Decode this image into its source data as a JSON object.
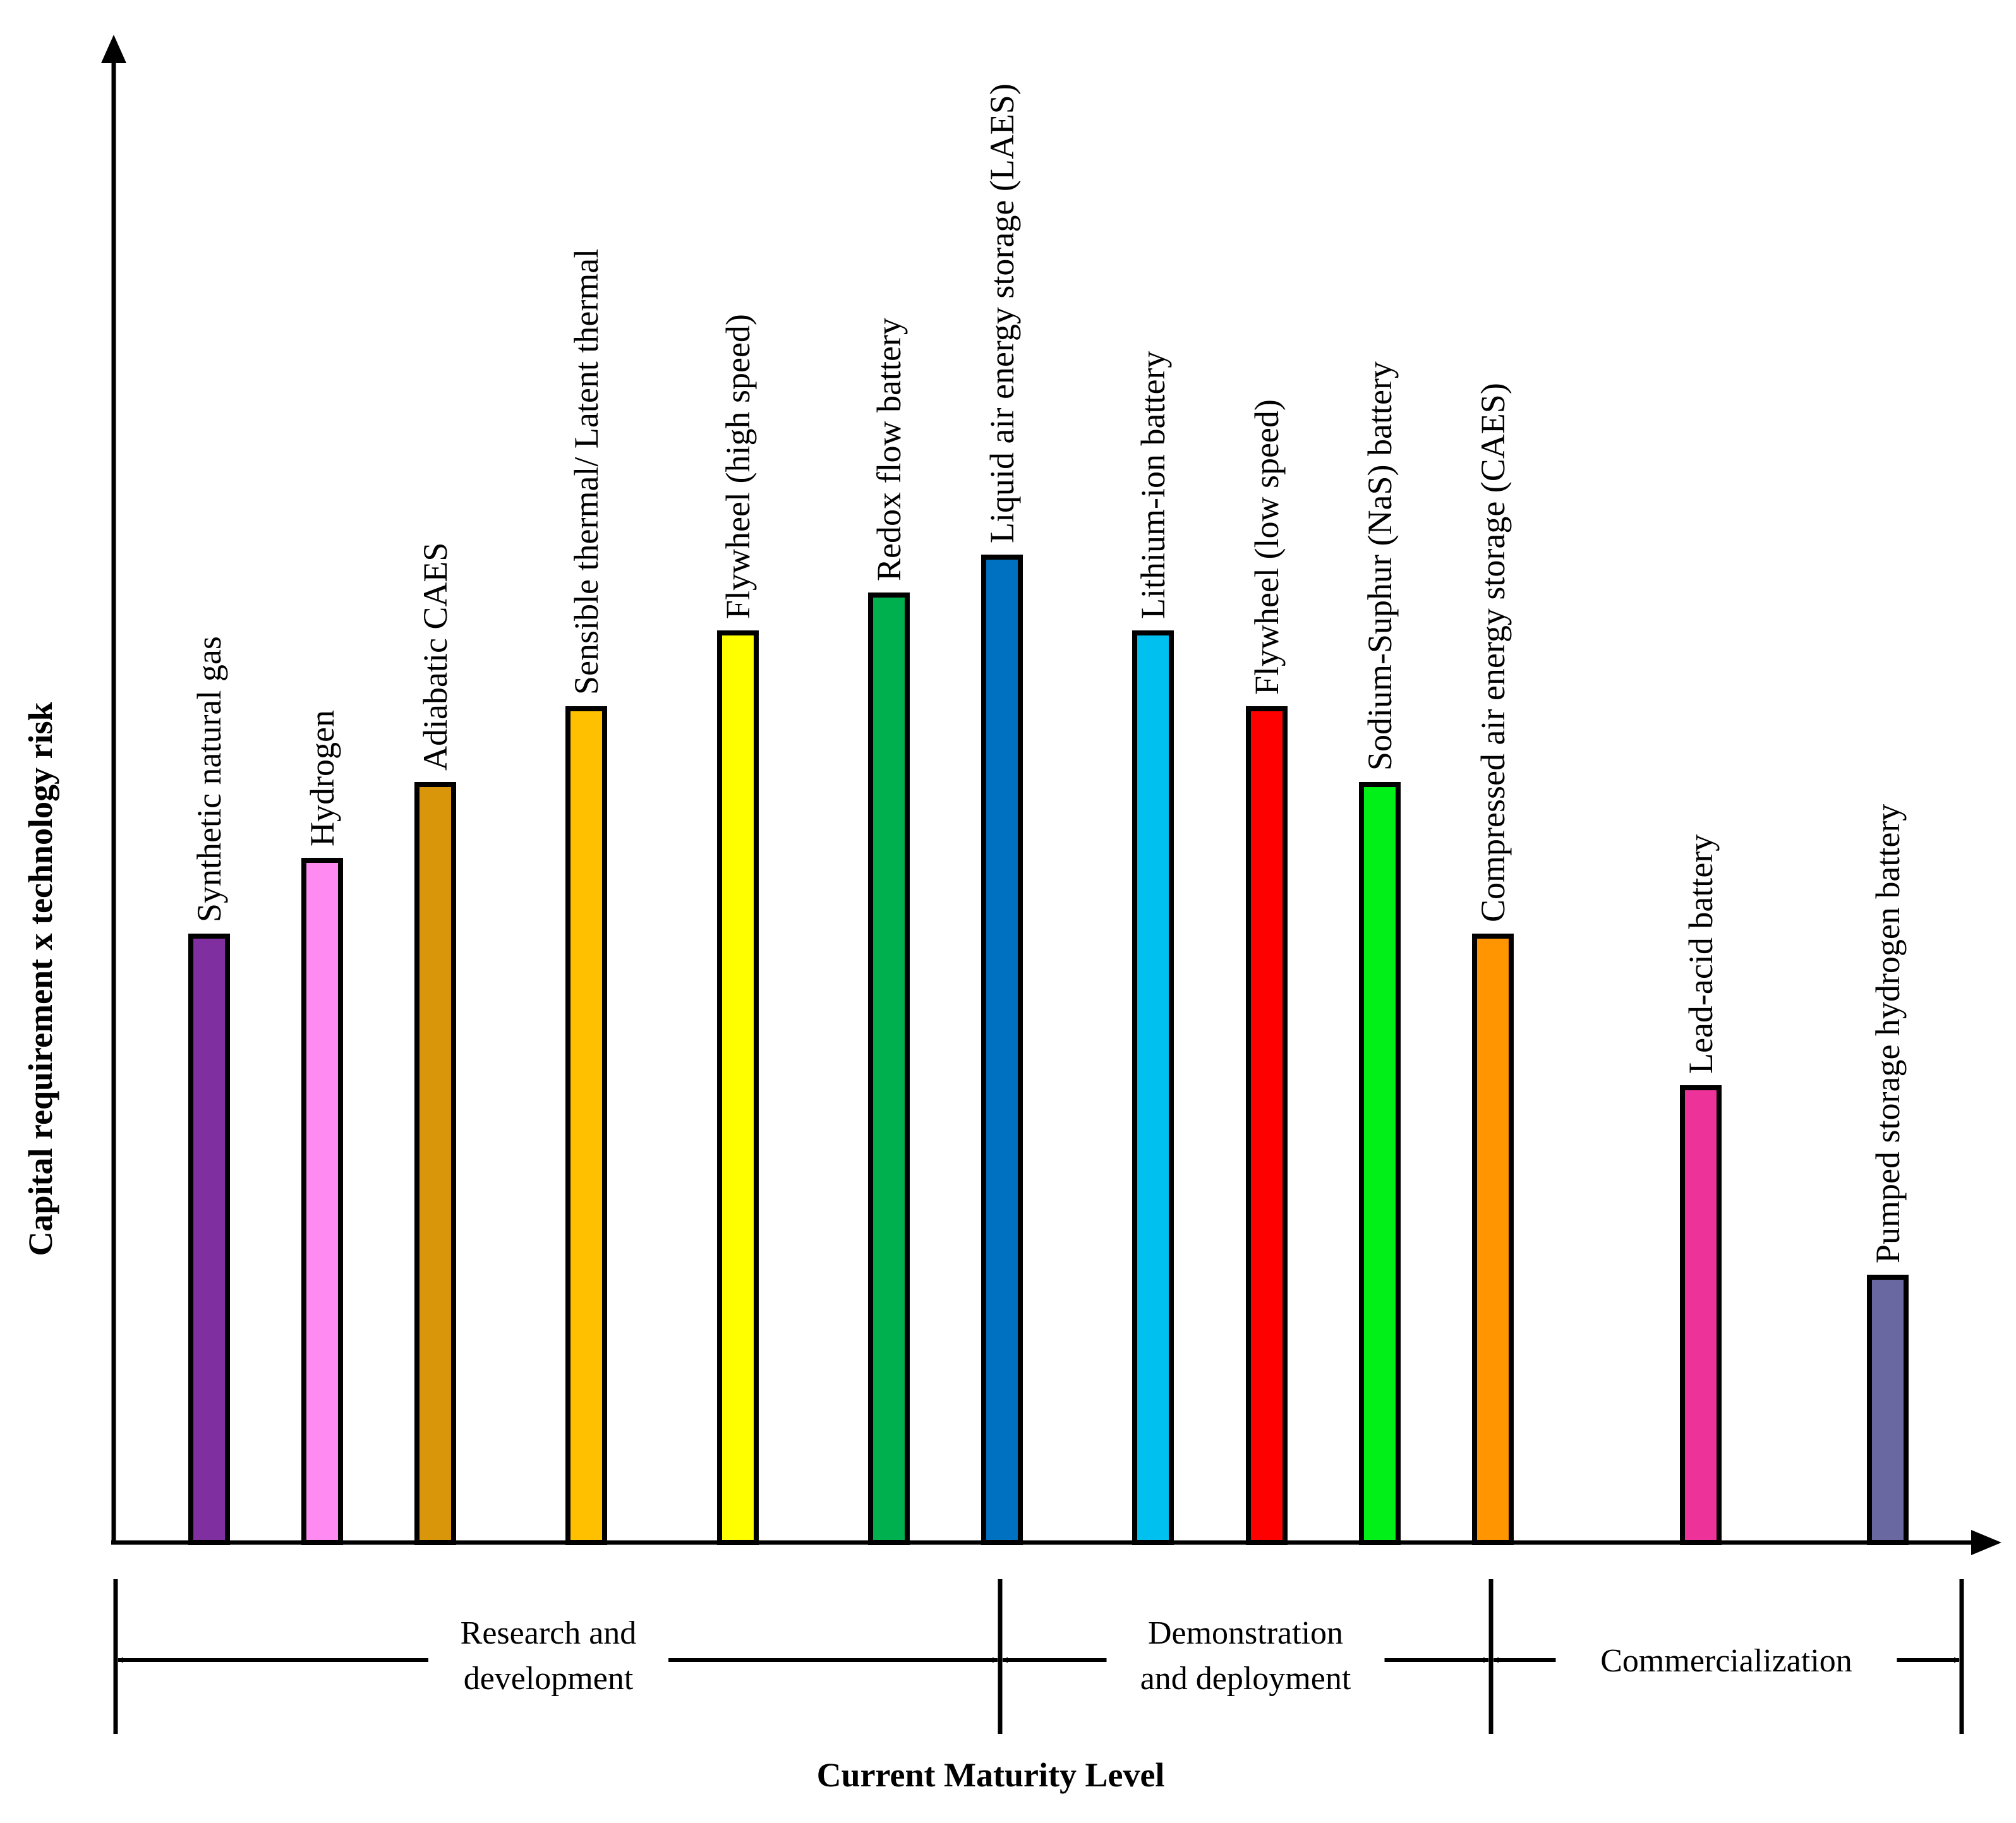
{
  "chart_data": {
    "type": "bar",
    "ylabel": "Capital requirement x technology risk",
    "xlabel": "Current Maturity Level",
    "ylim": [
      0,
      100
    ],
    "grid": false,
    "categories": [
      "Synthetic natural gas",
      "Hydrogen",
      "Adiabatic CAES",
      "Sensible thermal/ Latent thermal",
      "Flywheel (high speed)",
      "Redox flow battery",
      "Liquid air energy storage (LAES)",
      "Lithium-ion battery",
      "Flywheel (low speed)",
      "Sodium-Suphur (NaS) battery",
      "Compressed air energy storage (CAES)",
      "Lead-acid battery",
      "Pumped storage hydrogen battery"
    ],
    "values": [
      40,
      45,
      50,
      55,
      60,
      62.5,
      65,
      60,
      55,
      50,
      40,
      30,
      17.5
    ],
    "colors": [
      "#7F2FA0",
      "#FF8AF2",
      "#D9960B",
      "#FFC000",
      "#FFFF00",
      "#00B04F",
      "#0070C0",
      "#00C0F0",
      "#FF0000",
      "#00F018",
      "#FF9500",
      "#ED3399",
      "#6A68A0"
    ],
    "phases": [
      {
        "lines": [
          "Research and",
          "development"
        ],
        "members": [
          0,
          1,
          2,
          3,
          4,
          5,
          6
        ]
      },
      {
        "lines": [
          "Demonstration",
          "and deployment"
        ],
        "members": [
          7,
          8,
          9,
          10
        ]
      },
      {
        "lines": [
          "Commercialization"
        ],
        "members": [
          11,
          12
        ]
      }
    ]
  }
}
